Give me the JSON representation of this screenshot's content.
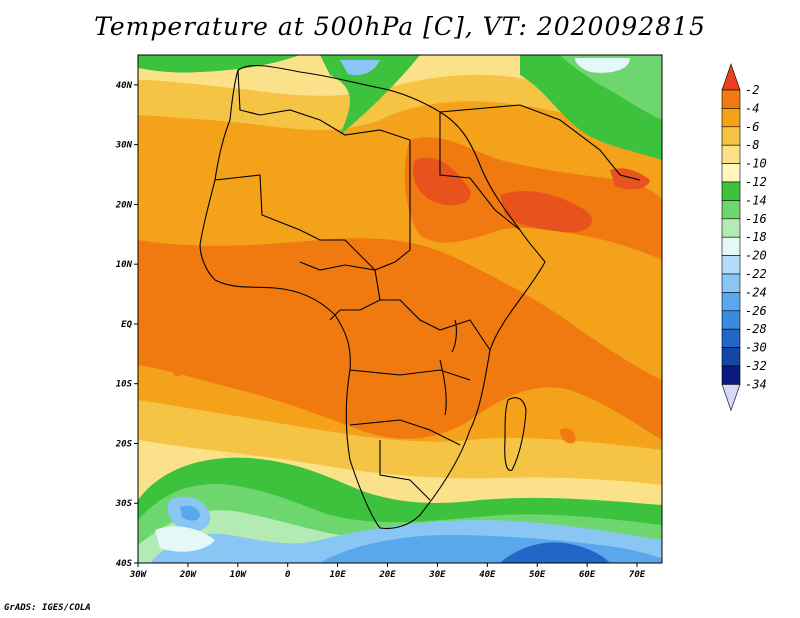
{
  "title": "Temperature at 500hPa [C], VT: 2020092815",
  "credit": "GrADS: IGES/COLA",
  "map": {
    "lat_labels": [
      "40N",
      "30N",
      "20N",
      "10N",
      "EQ",
      "10S",
      "20S",
      "30S",
      "40S"
    ],
    "lat_values": [
      40,
      30,
      20,
      10,
      0,
      -10,
      -20,
      -30,
      -40
    ],
    "lon_labels": [
      "30W",
      "20W",
      "10W",
      "0",
      "10E",
      "20E",
      "30E",
      "40E",
      "50E",
      "60E",
      "70E"
    ],
    "lon_values": [
      -30,
      -20,
      -10,
      0,
      10,
      20,
      30,
      40,
      50,
      60,
      70
    ],
    "lat_range": [
      -40,
      45
    ],
    "lon_range": [
      -30,
      75
    ],
    "region": "Africa"
  },
  "colorbar": {
    "labels": [
      "-2",
      "-4",
      "-6",
      "-8",
      "-10",
      "-12",
      "-14",
      "-16",
      "-18",
      "-20",
      "-22",
      "-24",
      "-26",
      "-28",
      "-30",
      "-32",
      "-34"
    ],
    "colors": [
      "#e8521d",
      "#f07a10",
      "#f4a21a",
      "#f6c445",
      "#fbe28a",
      "#fff6c0",
      "#3cc23c",
      "#6ed66e",
      "#b4eab4",
      "#e4f8f8",
      "#b2dcf8",
      "#8ac6f4",
      "#5aa8ec",
      "#3a8ae0",
      "#2266c8",
      "#1446a8",
      "#0a1a80"
    ],
    "top_color": "#e84020",
    "bottom_color": "#d8d8f8"
  }
}
